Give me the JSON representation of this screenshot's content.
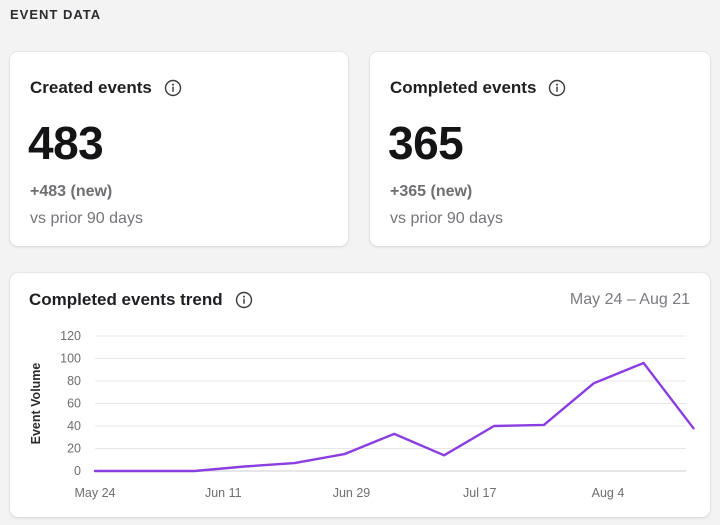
{
  "section": {
    "title": "EVENT DATA"
  },
  "cards": {
    "created": {
      "title": "Created events",
      "value": "483",
      "delta": "+483 (new)",
      "comparison": "vs prior 90 days"
    },
    "completed": {
      "title": "Completed events",
      "value": "365",
      "delta": "+365 (new)",
      "comparison": "vs prior 90 days"
    }
  },
  "trend": {
    "title": "Completed events trend",
    "date_range": "May 24 – Aug 21"
  },
  "icons": {
    "info": "info-circle-icon"
  },
  "colors": {
    "line": "#8b3ee0",
    "background": "#f3f3f4",
    "card": "#ffffff"
  },
  "chart_data": {
    "type": "line",
    "title": "Completed events trend",
    "xlabel": "",
    "ylabel": "Event Volume",
    "x_tick_labels": [
      "May 24",
      "Jun 11",
      "Jun 29",
      "Jul 17",
      "Aug 4"
    ],
    "ylim": [
      0,
      120
    ],
    "y_ticks": [
      0,
      20,
      40,
      60,
      80,
      100,
      120
    ],
    "grid": true,
    "series": [
      {
        "x": [
          "May 24",
          "May 31",
          "Jun 7",
          "Jun 14",
          "Jun 21",
          "Jun 28",
          "Jul 5",
          "Jul 12",
          "Jul 19",
          "Jul 26",
          "Aug 2",
          "Aug 9",
          "Aug 16"
        ],
        "values": [
          0,
          0,
          0,
          4,
          7,
          15,
          33,
          14,
          40,
          41,
          78,
          96,
          38
        ]
      }
    ]
  }
}
